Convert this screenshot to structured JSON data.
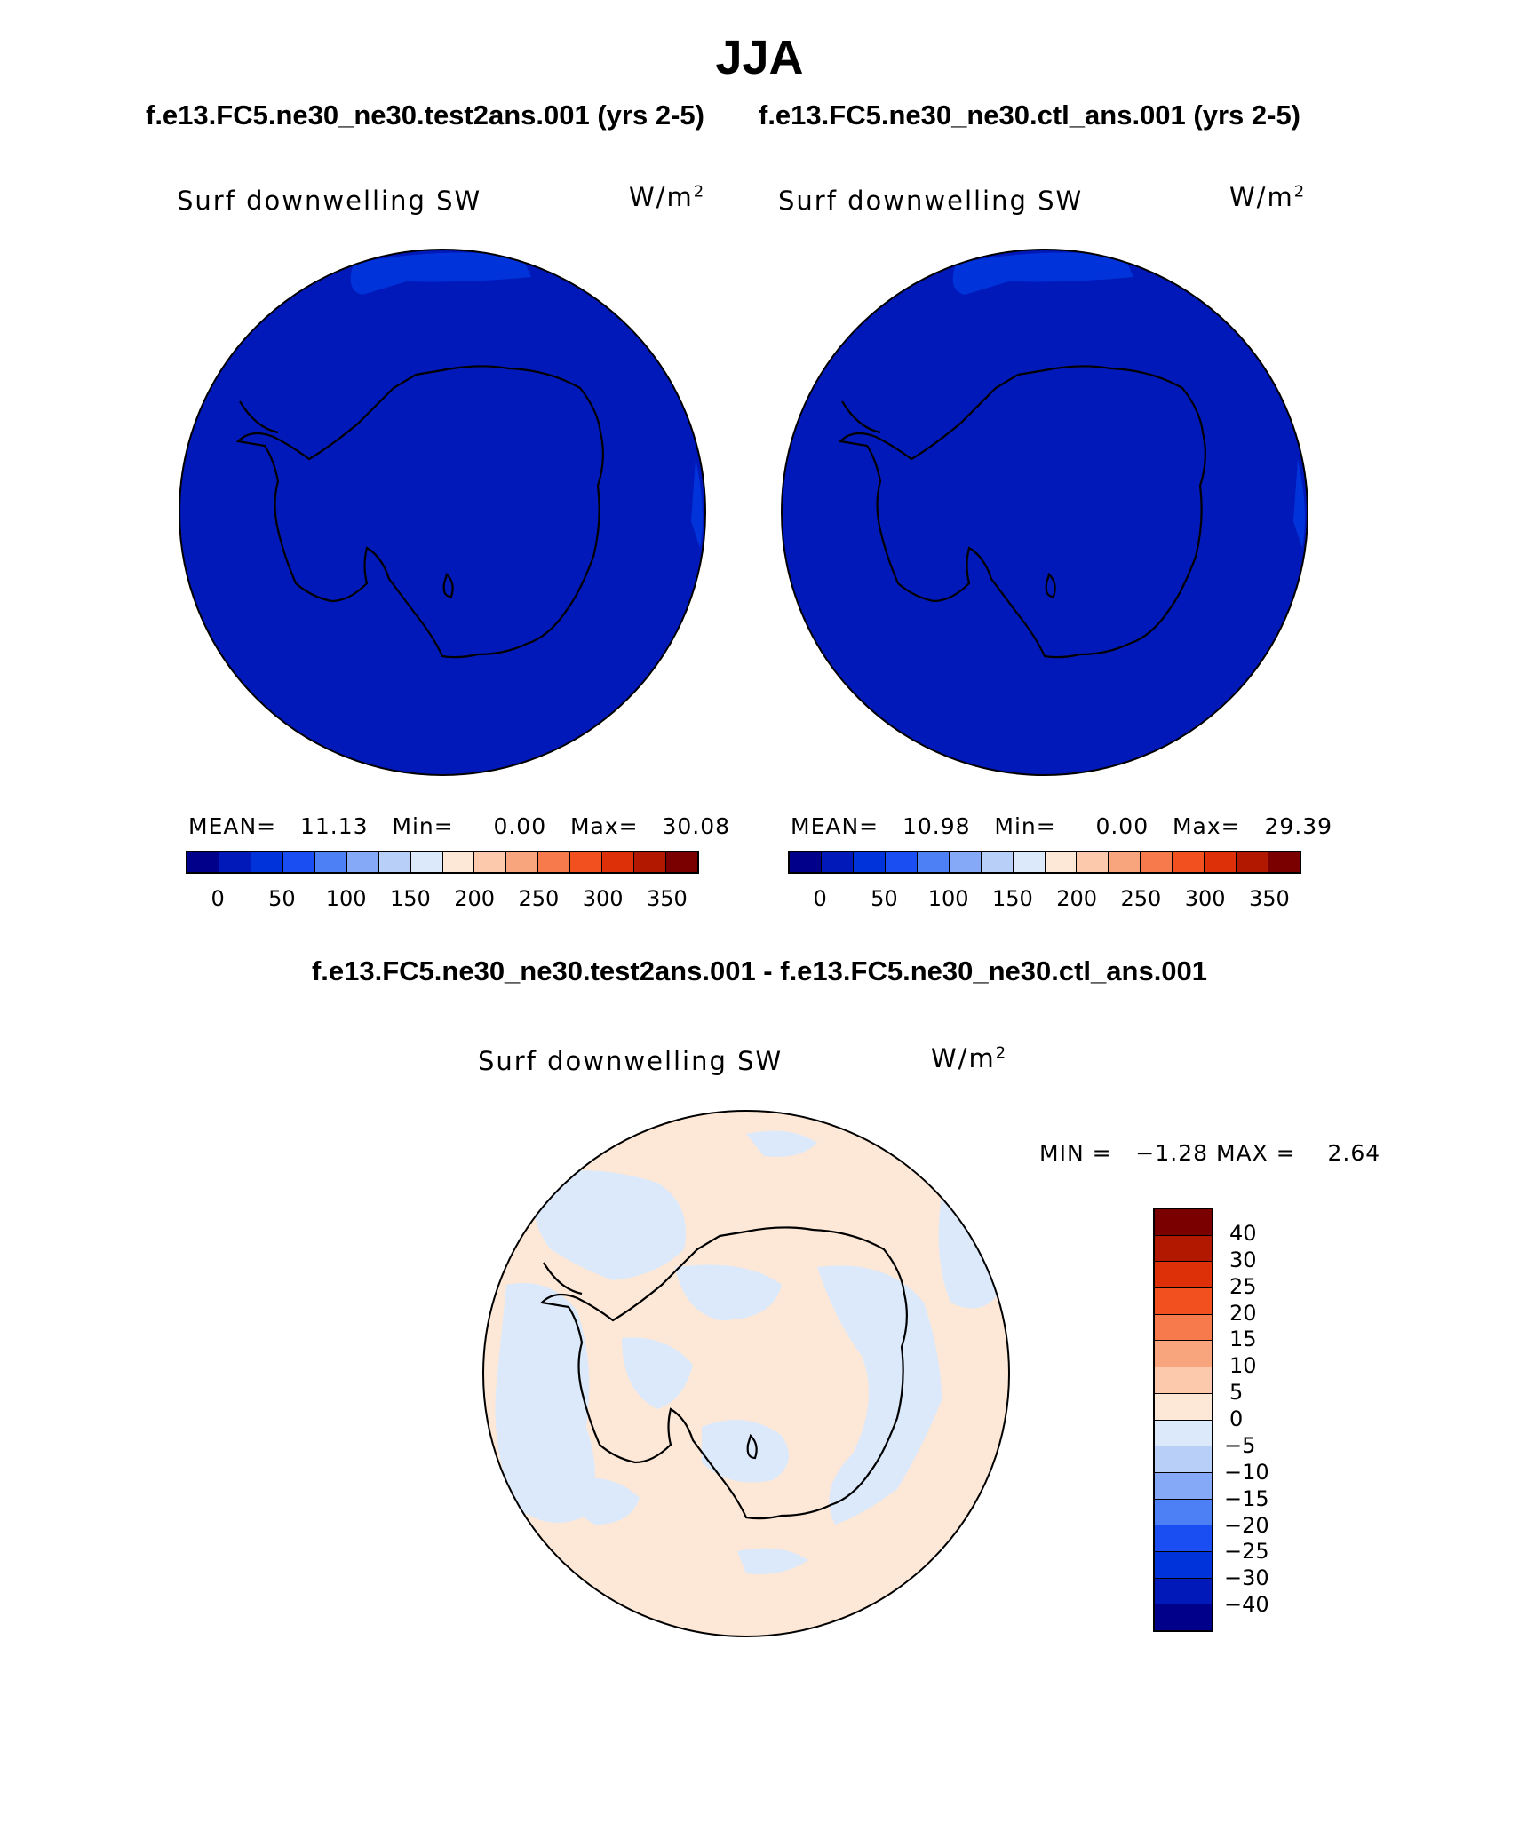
{
  "title": "JJA",
  "subtitles": {
    "left": "f.e13.FC5.ne30_ne30.test2ans.001 (yrs 2-5)",
    "right": "f.e13.FC5.ne30_ne30.ctl_ans.001 (yrs 2-5)"
  },
  "panel_left": {
    "variable": "Surf downwelling SW",
    "units": "W/m",
    "units_sup": "2",
    "mean_label": "MEAN=",
    "mean_value": "11.13",
    "min_label": "Min=",
    "min_value": "0.00",
    "max_label": "Max=",
    "max_value": "30.08"
  },
  "panel_right": {
    "variable": "Surf downwelling SW",
    "units": "W/m",
    "units_sup": "2",
    "mean_label": "MEAN=",
    "mean_value": "10.98",
    "min_label": "Min=",
    "min_value": "0.00",
    "max_label": "Max=",
    "max_value": "29.39"
  },
  "abs_colorbar": {
    "colors": [
      "#00008a",
      "#0019b8",
      "#0033d9",
      "#1a4df2",
      "#4d7ff5",
      "#85a8f7",
      "#b8cff8",
      "#dbe9fb",
      "#fde8d7",
      "#fcc9ac",
      "#f8a57e",
      "#f77a4d",
      "#f2501e",
      "#dd3008",
      "#b21800",
      "#7a0000"
    ],
    "tick_labels": [
      "0",
      "50",
      "100",
      "150",
      "200",
      "250",
      "300",
      "350"
    ]
  },
  "diff_title": "f.e13.FC5.ne30_ne30.test2ans.001 - f.e13.FC5.ne30_ne30.ctl_ans.001",
  "panel_diff": {
    "variable": "Surf downwelling SW",
    "units": "W/m",
    "units_sup": "2",
    "min_label": "MIN =",
    "min_value": "−1.28",
    "max_label": "MAX =",
    "max_value": "2.64"
  },
  "diff_colorbar": {
    "colors": [
      "#7a0000",
      "#b21800",
      "#dd3008",
      "#f2501e",
      "#f77a4d",
      "#f8a57e",
      "#fcc9ac",
      "#fde8d7",
      "#dbe9fb",
      "#b8cff8",
      "#85a8f7",
      "#4d7ff5",
      "#1a4df2",
      "#0033d9",
      "#0019b8",
      "#00008a"
    ],
    "tick_labels": [
      "40",
      "30",
      "25",
      "20",
      "15",
      "10",
      "5",
      "0",
      "−5",
      "−10",
      "−15",
      "−20",
      "−25",
      "−30",
      "−40"
    ]
  },
  "map_colors": {
    "abs_fill": "#0019b8",
    "abs_patch": "#0033d9",
    "diff_positive": "#fde8d7",
    "diff_negative": "#dbe9fb"
  }
}
